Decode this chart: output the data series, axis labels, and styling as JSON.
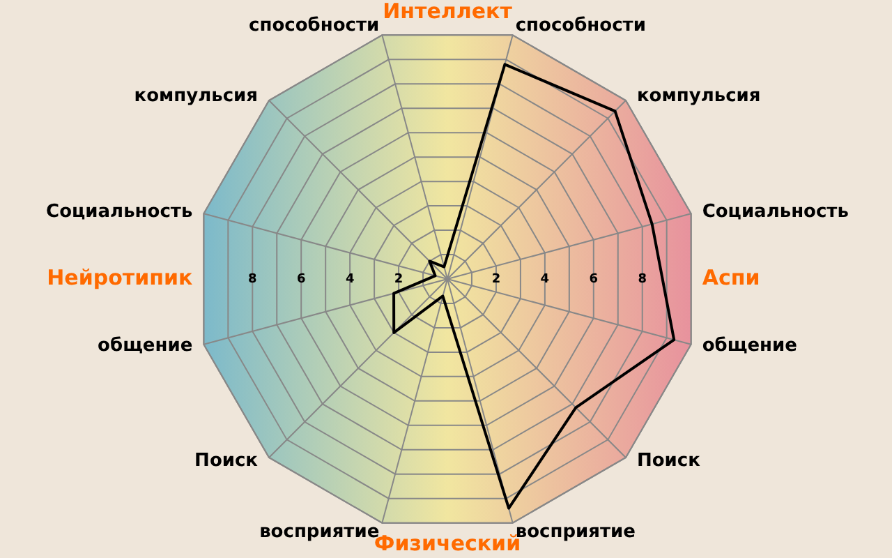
{
  "chart_data": {
    "type": "radar",
    "categories": [
      "способности",
      "компульсия",
      "Социальность",
      "общение",
      "Поиск",
      "восприятие",
      "восприятие",
      "Поиск",
      "общение",
      "Социальность",
      "компульсия",
      "способности"
    ],
    "series": [
      {
        "color": "#000000",
        "values": [
          8.8,
          9.4,
          8.4,
          9.3,
          7.2,
          9.4,
          0.7,
          3.0,
          2.2,
          0.5,
          1.0,
          0.5
        ]
      }
    ],
    "ylim": [
      0,
      10
    ],
    "yticks": [
      8,
      6,
      4,
      2,
      2,
      4,
      6,
      8
    ],
    "annotations": [
      "Интеллект",
      "Аспи",
      "Физический",
      "Нейротипик"
    ],
    "grid": true,
    "marker": "none"
  }
}
